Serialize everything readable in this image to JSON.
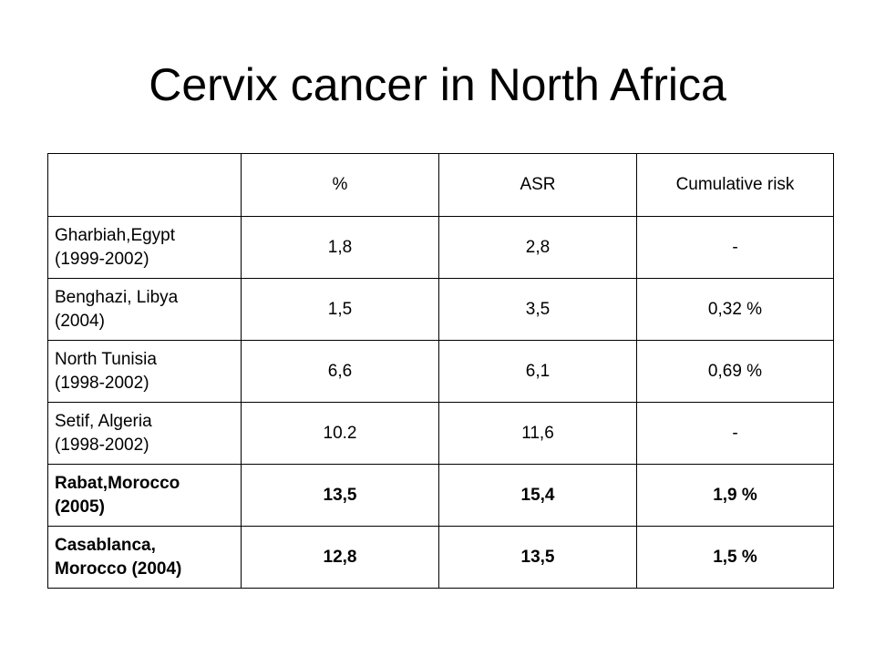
{
  "slide": {
    "title": "Cervix cancer in North Africa"
  },
  "table": {
    "headers": [
      "",
      "%",
      "ASR",
      "Cumulative risk"
    ],
    "rows": [
      {
        "label_line1": "Gharbiah,Egypt",
        "label_line2": "(1999-2002)",
        "percent": "1,8",
        "asr": "2,8",
        "cumulative_risk": "-",
        "bold": false
      },
      {
        "label_line1": "Benghazi, Libya",
        "label_line2": "(2004)",
        "percent": "1,5",
        "asr": "3,5",
        "cumulative_risk": "0,32 %",
        "bold": false
      },
      {
        "label_line1": "North Tunisia",
        "label_line2": "(1998-2002)",
        "percent": "6,6",
        "asr": "6,1",
        "cumulative_risk": "0,69 %",
        "bold": false
      },
      {
        "label_line1": "Setif, Algeria",
        "label_line2": "(1998-2002)",
        "percent": "10.2",
        "asr": "11,6",
        "cumulative_risk": "-",
        "bold": false
      },
      {
        "label_line1": "Rabat,Morocco",
        "label_line2": "(2005)",
        "percent": "13,5",
        "asr": "15,4",
        "cumulative_risk": "1,9 %",
        "bold": true
      },
      {
        "label_line1": "Casablanca,",
        "label_line2": "Morocco (2004)",
        "percent": "12,8",
        "asr": "13,5",
        "cumulative_risk": "1,5 %",
        "bold": true
      }
    ]
  }
}
